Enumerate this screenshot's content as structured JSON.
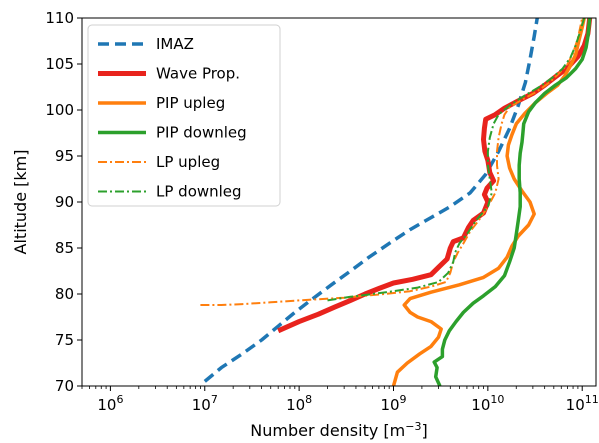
{
  "chart_data": {
    "type": "line",
    "xlabel": "Number density [m",
    "xlabel_sup": "−3",
    "xlabel_end": "]",
    "ylabel": "Altitude [km]",
    "xscale": "log",
    "xlim": [
      500000,
      140000000000
    ],
    "ylim": [
      70,
      110
    ],
    "x_ticks": [
      {
        "value": 1000000,
        "base": "10",
        "exp": "6"
      },
      {
        "value": 10000000,
        "base": "10",
        "exp": "7"
      },
      {
        "value": 100000000,
        "base": "10",
        "exp": "8"
      },
      {
        "value": 1000000000,
        "base": "10",
        "exp": "9"
      },
      {
        "value": 10000000000,
        "base": "10",
        "exp": "10"
      },
      {
        "value": 100000000000,
        "base": "10",
        "exp": "11"
      }
    ],
    "y_ticks": [
      {
        "value": 70,
        "label": "70"
      },
      {
        "value": 75,
        "label": "75"
      },
      {
        "value": 80,
        "label": "80"
      },
      {
        "value": 85,
        "label": "85"
      },
      {
        "value": 90,
        "label": "90"
      },
      {
        "value": 95,
        "label": "95"
      },
      {
        "value": 100,
        "label": "100"
      },
      {
        "value": 105,
        "label": "105"
      },
      {
        "value": 110,
        "label": "110"
      }
    ],
    "grid": false,
    "legend_position": "top-left",
    "series": [
      {
        "name": "IMAZ",
        "color": "#1f77b4",
        "style": "dashed",
        "width": 3.5,
        "points": [
          [
            10000000,
            70.5
          ],
          [
            15000000,
            72
          ],
          [
            25000000,
            73.5
          ],
          [
            40000000,
            75
          ],
          [
            60000000,
            76.5
          ],
          [
            90000000,
            78
          ],
          [
            140000000,
            79.5
          ],
          [
            220000000,
            81
          ],
          [
            350000000,
            82.5
          ],
          [
            550000000,
            84
          ],
          [
            900000000,
            85.5
          ],
          [
            1500000000,
            87
          ],
          [
            2500000000,
            88.3
          ],
          [
            4000000000,
            89.5
          ],
          [
            6500000000,
            91
          ],
          [
            9500000000,
            93
          ],
          [
            13000000000,
            95.5
          ],
          [
            17000000000,
            98
          ],
          [
            21000000000,
            100.5
          ],
          [
            25000000000,
            103
          ],
          [
            28000000000,
            105.5
          ],
          [
            31000000000,
            108
          ],
          [
            34000000000,
            110.5
          ]
        ]
      },
      {
        "name": "Wave Prop.",
        "color": "#e8231d",
        "style": "solid",
        "width": 5,
        "points": [
          [
            60000000,
            76
          ],
          [
            100000000,
            77
          ],
          [
            160000000,
            77.8
          ],
          [
            240000000,
            78.6
          ],
          [
            350000000,
            79.3
          ],
          [
            500000000,
            80
          ],
          [
            700000000,
            80.6
          ],
          [
            1000000000,
            81.2
          ],
          [
            1600000000,
            81.6
          ],
          [
            2500000000,
            82.1
          ],
          [
            3000000000,
            82.9
          ],
          [
            3700000000,
            83.8
          ],
          [
            4000000000,
            85
          ],
          [
            4300000000,
            85.7
          ],
          [
            5500000000,
            86.1
          ],
          [
            6200000000,
            87.2
          ],
          [
            7000000000,
            88
          ],
          [
            9000000000,
            88.8
          ],
          [
            10000000000,
            90
          ],
          [
            9200000000,
            90.8
          ],
          [
            9800000000,
            91.5
          ],
          [
            11500000000,
            92.3
          ],
          [
            10500000000,
            93.2
          ],
          [
            10000000000,
            94.5
          ],
          [
            9300000000,
            95.5
          ],
          [
            9000000000,
            96.8
          ],
          [
            9200000000,
            98
          ],
          [
            9500000000,
            99
          ],
          [
            12000000000,
            99.5
          ],
          [
            15000000000,
            100.2
          ],
          [
            21000000000,
            101
          ],
          [
            30000000000,
            101.8
          ],
          [
            40000000000,
            102.7
          ],
          [
            52000000000,
            103.6
          ],
          [
            70000000000,
            104.6
          ],
          [
            90000000000,
            105.8
          ],
          [
            105000000000,
            107
          ],
          [
            115000000000,
            108.3
          ],
          [
            120000000000,
            110
          ]
        ]
      },
      {
        "name": "PIP upleg",
        "color": "#ff7f0e",
        "style": "solid",
        "width": 3.5,
        "points": [
          [
            1000000000,
            70
          ],
          [
            1100000000,
            71.5
          ],
          [
            1400000000,
            72.5
          ],
          [
            1900000000,
            73.5
          ],
          [
            2500000000,
            74.3
          ],
          [
            3000000000,
            75.3
          ],
          [
            3200000000,
            76.2
          ],
          [
            2500000000,
            77
          ],
          [
            1800000000,
            77.5
          ],
          [
            1500000000,
            78
          ],
          [
            1300000000,
            78.8
          ],
          [
            1500000000,
            79.5
          ],
          [
            2500000000,
            80.2
          ],
          [
            5000000000,
            81
          ],
          [
            9000000000,
            81.8
          ],
          [
            13000000000,
            82.8
          ],
          [
            16000000000,
            84
          ],
          [
            18000000000,
            85.2
          ],
          [
            21000000000,
            86.3
          ],
          [
            27000000000,
            87.5
          ],
          [
            31000000000,
            88.7
          ],
          [
            28000000000,
            90
          ],
          [
            23000000000,
            91.2
          ],
          [
            19000000000,
            92.5
          ],
          [
            17000000000,
            93.7
          ],
          [
            16000000000,
            95
          ],
          [
            16500000000,
            96.2
          ],
          [
            18000000000,
            97.3
          ],
          [
            20000000000,
            98.5
          ],
          [
            25000000000,
            99.7
          ],
          [
            32000000000,
            100.8
          ],
          [
            42000000000,
            101.8
          ],
          [
            55000000000,
            102.7
          ],
          [
            65000000000,
            103.7
          ],
          [
            75000000000,
            104.8
          ],
          [
            85000000000,
            106
          ],
          [
            92000000000,
            107.5
          ],
          [
            100000000000,
            109
          ],
          [
            105000000000,
            110
          ]
        ]
      },
      {
        "name": "PIP downleg",
        "color": "#2ca02c",
        "style": "solid",
        "width": 3.5,
        "points": [
          [
            3100000000,
            70
          ],
          [
            2800000000,
            71
          ],
          [
            2900000000,
            72
          ],
          [
            2700000000,
            72.6
          ],
          [
            3300000000,
            73.2
          ],
          [
            3300000000,
            74
          ],
          [
            3500000000,
            75
          ],
          [
            3900000000,
            76
          ],
          [
            4600000000,
            77
          ],
          [
            5500000000,
            78
          ],
          [
            7000000000,
            79
          ],
          [
            9000000000,
            79.8
          ],
          [
            12000000000,
            80.8
          ],
          [
            15000000000,
            82
          ],
          [
            17000000000,
            83.5
          ],
          [
            19000000000,
            85
          ],
          [
            20000000000,
            86.5
          ],
          [
            21000000000,
            88
          ],
          [
            22000000000,
            89.5
          ],
          [
            22000000000,
            91
          ],
          [
            21500000000,
            92.5
          ],
          [
            21500000000,
            94
          ],
          [
            22000000000,
            95.3
          ],
          [
            23000000000,
            96.5
          ],
          [
            23500000000,
            97.5
          ],
          [
            24000000000,
            98.5
          ],
          [
            27000000000,
            99.8
          ],
          [
            32000000000,
            100.8
          ],
          [
            40000000000,
            101.8
          ],
          [
            52000000000,
            102.7
          ],
          [
            68000000000,
            103.5
          ],
          [
            85000000000,
            104.5
          ],
          [
            100000000000,
            105.5
          ],
          [
            110000000000,
            106.8
          ],
          [
            115000000000,
            108
          ],
          [
            120000000000,
            110
          ]
        ]
      },
      {
        "name": "LP upleg",
        "color": "#ff7f0e",
        "style": "dashdot",
        "width": 2,
        "points": [
          [
            9000000,
            78.8
          ],
          [
            15000000,
            78.8
          ],
          [
            25000000,
            78.9
          ],
          [
            50000000,
            79.1
          ],
          [
            100000000,
            79.3
          ],
          [
            300000000,
            79.6
          ],
          [
            800000000,
            80
          ],
          [
            1500000000,
            80.3
          ],
          [
            2500000000,
            80.8
          ],
          [
            3600000000,
            81.3
          ],
          [
            4000000000,
            82.3
          ],
          [
            4300000000,
            83.5
          ],
          [
            4800000000,
            84.5
          ],
          [
            5500000000,
            85.5
          ],
          [
            6500000000,
            86.8
          ],
          [
            8000000000,
            88
          ],
          [
            10000000000,
            89.5
          ],
          [
            12000000000,
            91
          ],
          [
            13000000000,
            92.5
          ],
          [
            12500000000,
            94
          ],
          [
            12500000000,
            95.5
          ],
          [
            13000000000,
            97
          ],
          [
            14000000000,
            98.5
          ],
          [
            15000000000,
            99.5
          ],
          [
            17000000000,
            100.3
          ],
          [
            22000000000,
            101
          ],
          [
            33000000000,
            102
          ],
          [
            45000000000,
            103
          ],
          [
            57000000000,
            104
          ],
          [
            70000000000,
            105
          ],
          [
            80000000000,
            106.2
          ],
          [
            90000000000,
            107.8
          ],
          [
            100000000000,
            110
          ]
        ]
      },
      {
        "name": "LP downleg",
        "color": "#2ca02c",
        "style": "dashdot",
        "width": 2,
        "points": [
          [
            200000000,
            79.3
          ],
          [
            350000000,
            79.7
          ],
          [
            600000000,
            80
          ],
          [
            1000000000,
            80.3
          ],
          [
            1800000000,
            80.7
          ],
          [
            3000000000,
            81.3
          ],
          [
            3800000000,
            82.3
          ],
          [
            4300000000,
            83.5
          ],
          [
            4500000000,
            84.5
          ],
          [
            5000000000,
            85.5
          ],
          [
            6000000000,
            86.5
          ],
          [
            7500000000,
            88
          ],
          [
            10000000000,
            89.5
          ],
          [
            11000000000,
            91
          ],
          [
            10500000000,
            92.5
          ],
          [
            10000000000,
            94
          ],
          [
            10000000000,
            95.5
          ],
          [
            10500000000,
            97
          ],
          [
            11500000000,
            98.5
          ],
          [
            13000000000,
            99.5
          ],
          [
            17000000000,
            100.5
          ],
          [
            24000000000,
            101.5
          ],
          [
            35000000000,
            102.5
          ],
          [
            48000000000,
            103.5
          ],
          [
            62000000000,
            104.5
          ],
          [
            75000000000,
            105.7
          ],
          [
            85000000000,
            107
          ],
          [
            95000000000,
            108.5
          ],
          [
            105000000000,
            110
          ]
        ]
      }
    ]
  }
}
